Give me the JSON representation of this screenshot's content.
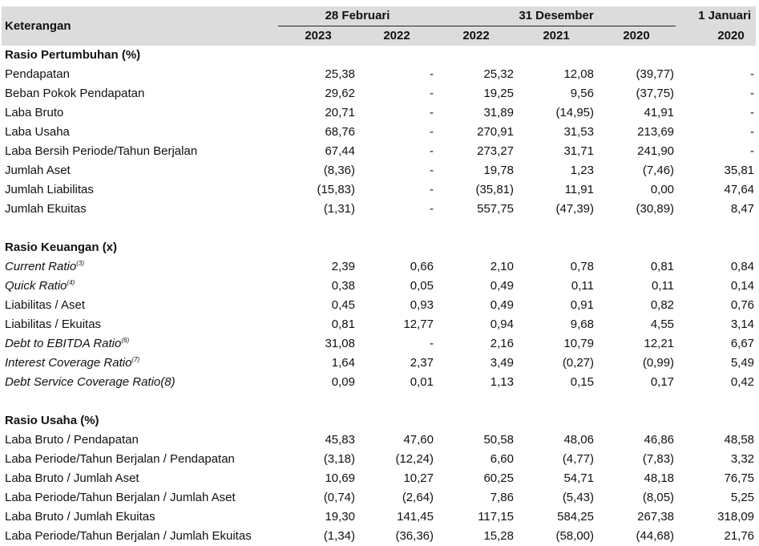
{
  "header": {
    "label_col": "Keterangan",
    "groups": [
      {
        "label": "28 Februari",
        "span": 2
      },
      {
        "label": "31 Desember",
        "span": 3
      },
      {
        "label": "1 Januari",
        "span": 1
      }
    ],
    "years": [
      "2023",
      "2022",
      "2022",
      "2021",
      "2020",
      "2020"
    ]
  },
  "sections": [
    {
      "title": "Rasio Pertumbuhan (%)",
      "rows": [
        {
          "label": "Pendapatan",
          "values": [
            "25,38",
            "-",
            "25,32",
            "12,08",
            "(39,77)",
            "-"
          ]
        },
        {
          "label": "Beban Pokok Pendapatan",
          "values": [
            "29,62",
            "-",
            "19,25",
            "9,56",
            "(37,75)",
            "-"
          ]
        },
        {
          "label": "Laba Bruto",
          "values": [
            "20,71",
            "-",
            "31,89",
            "(14,95)",
            "41,91",
            "-"
          ]
        },
        {
          "label": "Laba Usaha",
          "values": [
            "68,76",
            "-",
            "270,91",
            "31,53",
            "213,69",
            "-"
          ]
        },
        {
          "label": "Laba Bersih Periode/Tahun Berjalan",
          "values": [
            "67,44",
            "-",
            "273,27",
            "31,71",
            "241,90",
            "-"
          ]
        },
        {
          "label": "Jumlah Aset",
          "values": [
            "(8,36)",
            "-",
            "19,78",
            "1,23",
            "(7,46)",
            "35,81"
          ]
        },
        {
          "label": "Jumlah Liabilitas",
          "values": [
            "(15,83)",
            "-",
            "(35,81)",
            "11,91",
            "0,00",
            "47,64"
          ]
        },
        {
          "label": "Jumlah Ekuitas",
          "values": [
            "(1,31)",
            "-",
            "557,75",
            "(47,39)",
            "(30,89)",
            "8,47"
          ]
        }
      ]
    },
    {
      "title": "Rasio Keuangan (x)",
      "rows": [
        {
          "label": "Current Ratio",
          "note": "(3)",
          "italic": true,
          "values": [
            "2,39",
            "0,66",
            "2,10",
            "0,78",
            "0,81",
            "0,84"
          ]
        },
        {
          "label": "Quick Ratio",
          "note": "(4)",
          "italic": true,
          "values": [
            "0,38",
            "0,05",
            "0,49",
            "0,11",
            "0,11",
            "0,14"
          ]
        },
        {
          "label": "Liabilitas / Aset",
          "values": [
            "0,45",
            "0,93",
            "0,49",
            "0,91",
            "0,82",
            "0,76"
          ]
        },
        {
          "label": "Liabilitas / Ekuitas",
          "values": [
            "0,81",
            "12,77",
            "0,94",
            "9,68",
            "4,55",
            "3,14"
          ]
        },
        {
          "label": "Debt to EBITDA Ratio",
          "note": "(6)",
          "italic": true,
          "values": [
            "31,08",
            "-",
            "2,16",
            "10,79",
            "12,21",
            "6,67"
          ]
        },
        {
          "label": "Interest Coverage Ratio",
          "note": "(7)",
          "italic": true,
          "values": [
            "1,64",
            "2,37",
            "3,49",
            "(0,27)",
            "(0,99)",
            "5,49"
          ]
        },
        {
          "label": "Debt Service Coverage Ratio(8)",
          "italic": true,
          "values": [
            "0,09",
            "0,01",
            "1,13",
            "0,15",
            "0,17",
            "0,42"
          ]
        }
      ]
    },
    {
      "title": "Rasio Usaha (%)",
      "rows": [
        {
          "label": "Laba Bruto / Pendapatan",
          "values": [
            "45,83",
            "47,60",
            "50,58",
            "48,06",
            "46,86",
            "48,58"
          ]
        },
        {
          "label": "Laba Periode/Tahun Berjalan / Pendapatan",
          "values": [
            "(3,18)",
            "(12,24)",
            "6,60",
            "(4,77)",
            "(7,83)",
            "3,32"
          ]
        },
        {
          "label": "Laba Bruto / Jumlah Aset",
          "values": [
            "10,69",
            "10,27",
            "60,25",
            "54,71",
            "48,18",
            "76,75"
          ]
        },
        {
          "label": "Laba Periode/Tahun Berjalan / Jumlah Aset",
          "values": [
            "(0,74)",
            "(2,64)",
            "7,86",
            "(5,43)",
            "(8,05)",
            "5,25"
          ]
        },
        {
          "label": "Laba Bruto / Jumlah Ekuitas",
          "values": [
            "19,30",
            "141,45",
            "117,15",
            "584,25",
            "267,38",
            "318,09"
          ]
        },
        {
          "label": "Laba Periode/Tahun Berjalan / Jumlah Ekuitas",
          "values": [
            "(1,34)",
            "(36,36)",
            "15,28",
            "(58,00)",
            "(44,68)",
            "21,76"
          ]
        }
      ]
    }
  ]
}
